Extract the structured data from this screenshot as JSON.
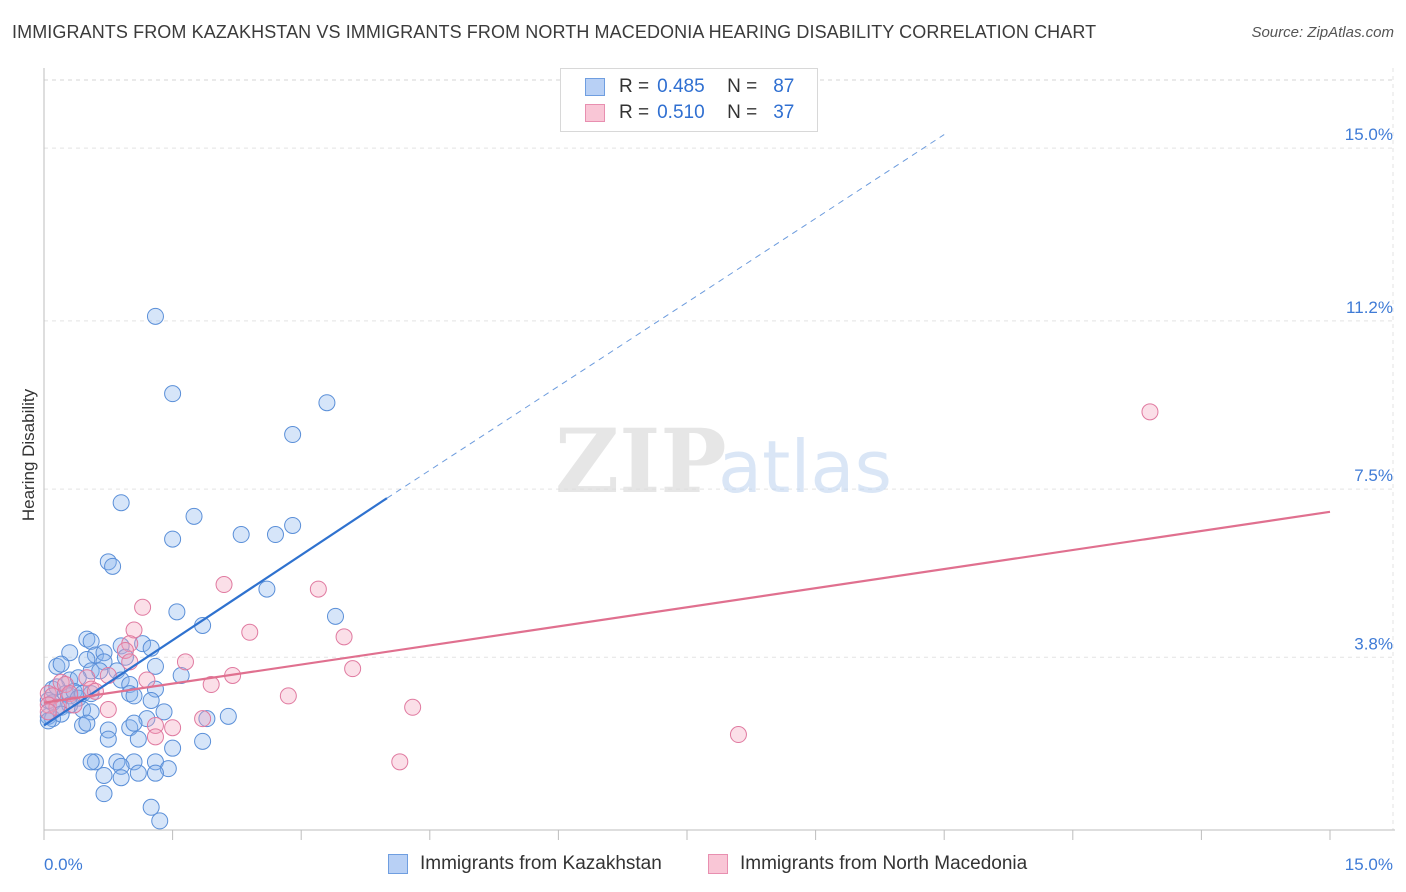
{
  "chart_data": {
    "type": "scatter",
    "title": "IMMIGRANTS FROM KAZAKHSTAN VS IMMIGRANTS FROM NORTH MACEDONIA HEARING DISABILITY CORRELATION CHART",
    "source": "Source: ZipAtlas.com",
    "xlabel": "",
    "ylabel": "Hearing Disability",
    "xlim": [
      0,
      15
    ],
    "ylim": [
      0,
      16.5
    ],
    "x_tick_labels": [
      "0.0%",
      "15.0%"
    ],
    "y_ticks": [
      3.8,
      7.5,
      11.2,
      15.0
    ],
    "y_tick_labels": [
      "3.8%",
      "7.5%",
      "11.2%",
      "15.0%"
    ],
    "grid": true,
    "watermark": "ZIPatlas",
    "legend": {
      "position": "top-center",
      "entries": [
        {
          "r_label": "R =",
          "r_value": "0.485",
          "n_label": "N =",
          "n_value": "87"
        },
        {
          "r_label": "R =",
          "r_value": "0.510",
          "n_label": "N =",
          "n_value": "37"
        }
      ]
    },
    "series": [
      {
        "name": "Immigrants from Kazakhstan",
        "color": "#8ab4ef",
        "stroke": "#5a8fd8",
        "trend": {
          "x": [
            0.0,
            4.0
          ],
          "y": [
            2.3,
            7.3
          ],
          "color": "#2f72cf"
        },
        "trend_extension": {
          "x": [
            4.0,
            10.5
          ],
          "y": [
            7.3,
            15.3
          ]
        },
        "points": [
          [
            1.3,
            11.3
          ],
          [
            1.5,
            9.6
          ],
          [
            3.3,
            9.4
          ],
          [
            2.9,
            8.7
          ],
          [
            0.9,
            7.2
          ],
          [
            1.75,
            6.9
          ],
          [
            2.9,
            6.7
          ],
          [
            1.5,
            6.4
          ],
          [
            2.3,
            6.5
          ],
          [
            2.7,
            6.5
          ],
          [
            0.75,
            5.9
          ],
          [
            0.8,
            5.8
          ],
          [
            2.6,
            5.3
          ],
          [
            1.55,
            4.8
          ],
          [
            3.4,
            4.7
          ],
          [
            1.85,
            4.5
          ],
          [
            0.5,
            4.2
          ],
          [
            0.55,
            4.15
          ],
          [
            0.9,
            4.05
          ],
          [
            1.15,
            4.1
          ],
          [
            1.25,
            4.0
          ],
          [
            0.3,
            3.9
          ],
          [
            0.6,
            3.85
          ],
          [
            0.7,
            3.9
          ],
          [
            0.95,
            3.8
          ],
          [
            0.5,
            3.75
          ],
          [
            0.7,
            3.7
          ],
          [
            0.15,
            3.6
          ],
          [
            0.2,
            3.65
          ],
          [
            0.55,
            3.5
          ],
          [
            0.65,
            3.5
          ],
          [
            0.85,
            3.5
          ],
          [
            1.3,
            3.6
          ],
          [
            1.6,
            3.4
          ],
          [
            0.3,
            3.3
          ],
          [
            0.4,
            3.35
          ],
          [
            0.9,
            3.3
          ],
          [
            1.0,
            3.2
          ],
          [
            1.3,
            3.1
          ],
          [
            0.1,
            3.1
          ],
          [
            0.15,
            3.15
          ],
          [
            0.25,
            3.0
          ],
          [
            0.3,
            2.95
          ],
          [
            0.35,
            3.05
          ],
          [
            0.4,
            2.9
          ],
          [
            0.45,
            3.0
          ],
          [
            0.55,
            3.0
          ],
          [
            1.0,
            3.0
          ],
          [
            1.05,
            2.95
          ],
          [
            1.25,
            2.85
          ],
          [
            0.05,
            2.85
          ],
          [
            0.1,
            2.8
          ],
          [
            0.2,
            2.7
          ],
          [
            0.3,
            2.75
          ],
          [
            0.45,
            2.65
          ],
          [
            0.55,
            2.6
          ],
          [
            1.4,
            2.6
          ],
          [
            2.15,
            2.5
          ],
          [
            0.05,
            2.5
          ],
          [
            0.1,
            2.45
          ],
          [
            0.2,
            2.55
          ],
          [
            0.45,
            2.3
          ],
          [
            0.5,
            2.35
          ],
          [
            1.2,
            2.45
          ],
          [
            1.9,
            2.45
          ],
          [
            0.75,
            2.2
          ],
          [
            1.0,
            2.25
          ],
          [
            1.05,
            2.35
          ],
          [
            0.75,
            2.0
          ],
          [
            1.1,
            2.0
          ],
          [
            1.85,
            1.95
          ],
          [
            1.5,
            1.8
          ],
          [
            0.05,
            2.4
          ],
          [
            0.6,
            1.5
          ],
          [
            0.85,
            1.5
          ],
          [
            1.05,
            1.5
          ],
          [
            1.3,
            1.5
          ],
          [
            1.45,
            1.35
          ],
          [
            0.9,
            1.4
          ],
          [
            0.7,
            1.2
          ],
          [
            1.1,
            1.25
          ],
          [
            1.3,
            1.25
          ],
          [
            0.9,
            1.15
          ],
          [
            0.7,
            0.8
          ],
          [
            1.25,
            0.5
          ],
          [
            1.35,
            0.2
          ],
          [
            0.55,
            1.5
          ]
        ]
      },
      {
        "name": "Immigrants from North Macedonia",
        "color": "#f4a3be",
        "stroke": "#e07aa0",
        "trend": {
          "x": [
            0.0,
            15.0
          ],
          "y": [
            2.8,
            7.0
          ],
          "color": "#e0708f"
        },
        "points": [
          [
            12.9,
            9.2
          ],
          [
            2.1,
            5.4
          ],
          [
            3.2,
            5.3
          ],
          [
            1.15,
            4.9
          ],
          [
            1.05,
            4.4
          ],
          [
            2.4,
            4.35
          ],
          [
            3.5,
            4.25
          ],
          [
            1.0,
            4.1
          ],
          [
            0.95,
            3.95
          ],
          [
            1.65,
            3.7
          ],
          [
            1.0,
            3.7
          ],
          [
            3.6,
            3.55
          ],
          [
            2.2,
            3.4
          ],
          [
            0.75,
            3.4
          ],
          [
            0.5,
            3.35
          ],
          [
            1.2,
            3.3
          ],
          [
            1.95,
            3.2
          ],
          [
            0.2,
            3.25
          ],
          [
            0.25,
            3.2
          ],
          [
            0.55,
            3.1
          ],
          [
            0.6,
            3.05
          ],
          [
            0.3,
            3.0
          ],
          [
            0.05,
            3.0
          ],
          [
            0.1,
            2.95
          ],
          [
            2.85,
            2.95
          ],
          [
            0.05,
            2.75
          ],
          [
            0.15,
            2.7
          ],
          [
            0.35,
            2.75
          ],
          [
            4.3,
            2.7
          ],
          [
            0.75,
            2.65
          ],
          [
            0.05,
            2.6
          ],
          [
            1.85,
            2.45
          ],
          [
            1.3,
            2.3
          ],
          [
            1.5,
            2.25
          ],
          [
            1.3,
            2.05
          ],
          [
            8.1,
            2.1
          ],
          [
            4.15,
            1.5
          ]
        ]
      }
    ]
  },
  "bottom_legend": {
    "kazakhstan_label": "Immigrants from Kazakhstan",
    "macedonia_label": "Immigrants from North Macedonia"
  }
}
